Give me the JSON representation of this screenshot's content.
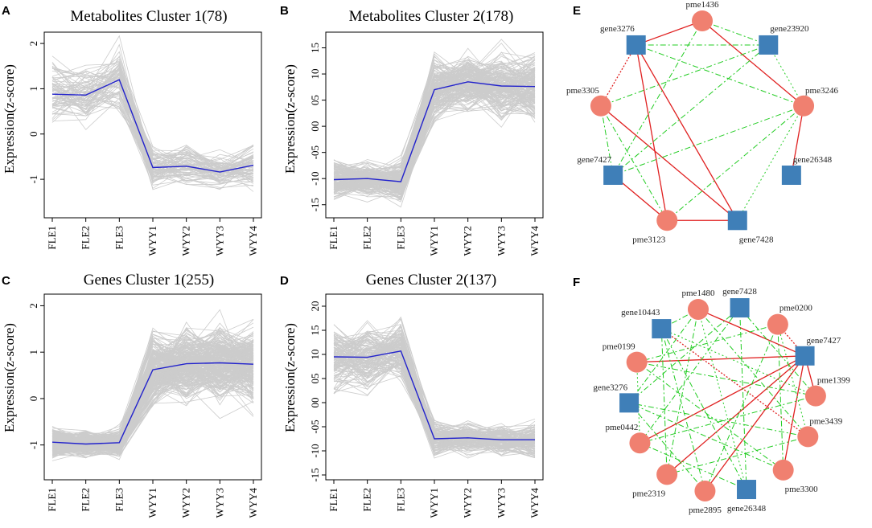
{
  "colors": {
    "gray_line": "#cccccc",
    "mean_line": "#2222cc",
    "metabolite_node": "#f08070",
    "gene_node": "#3f7fb8",
    "pos_edge": "#e02020",
    "neg_edge": "#22cc22"
  },
  "chart_data": [
    {
      "letter": "A",
      "type": "line",
      "title": "Metabolites Cluster 1(78)",
      "ylabel": "Expression(z-score)",
      "categories": [
        "FLE1",
        "FLE2",
        "FLE3",
        "WYY1",
        "WYY2",
        "WYY3",
        "WYY4"
      ],
      "ylim": [
        -1.85,
        2.25
      ],
      "yticks": [
        -1,
        0,
        1,
        2
      ],
      "ytick_labels": [
        "-1",
        "0",
        "1",
        "2"
      ],
      "mean": [
        0.88,
        0.86,
        1.2,
        -0.74,
        -0.71,
        -0.84,
        -0.69
      ],
      "profile": {
        "center": [
          0.88,
          0.86,
          1.2,
          -0.74,
          -0.71,
          -0.84,
          -0.69
        ],
        "spread": [
          0.42,
          0.38,
          0.45,
          0.3,
          0.25,
          0.22,
          0.3
        ],
        "count": 78
      }
    },
    {
      "letter": "B",
      "type": "line",
      "title": "Metabolites Cluster 2(178)",
      "ylabel": "Expression(z-score)",
      "categories": [
        "FLE1",
        "FLE2",
        "FLE3",
        "WYY1",
        "WYY2",
        "WYY3",
        "WYY4"
      ],
      "ylim": [
        -1.75,
        1.8
      ],
      "yticks": [
        -1.5,
        -1.0,
        -0.5,
        0.0,
        0.5,
        1.0,
        1.5
      ],
      "ytick_labels": [
        "-15",
        "-10",
        "-05",
        "00",
        "05",
        "10",
        "15"
      ],
      "mean": [
        -1.02,
        -1.0,
        -1.06,
        0.7,
        0.85,
        0.77,
        0.76
      ],
      "profile": {
        "center": [
          -1.02,
          -1.0,
          -1.06,
          0.7,
          0.85,
          0.77,
          0.76
        ],
        "spread": [
          0.22,
          0.2,
          0.22,
          0.38,
          0.35,
          0.35,
          0.38
        ],
        "count": 178
      }
    },
    {
      "letter": "C",
      "type": "line",
      "title": "Genes Cluster 1(255)",
      "ylabel": "Expression(z-score)",
      "categories": [
        "FLE1",
        "FLE2",
        "FLE3",
        "WYY1",
        "WYY2",
        "WYY3",
        "WYY4"
      ],
      "ylim": [
        -1.75,
        2.25
      ],
      "yticks": [
        -1,
        0,
        1,
        2
      ],
      "ytick_labels": [
        "-1",
        "0",
        "1",
        "2"
      ],
      "mean": [
        -0.94,
        -0.98,
        -0.95,
        0.62,
        0.75,
        0.77,
        0.74
      ],
      "profile": {
        "center": [
          -0.94,
          -0.98,
          -0.95,
          0.62,
          0.75,
          0.77,
          0.74
        ],
        "spread": [
          0.18,
          0.16,
          0.18,
          0.48,
          0.5,
          0.5,
          0.5
        ],
        "count": 255
      }
    },
    {
      "letter": "D",
      "type": "line",
      "title": "Genes Cluster 2(137)",
      "ylabel": "Expression(z-score)",
      "categories": [
        "FLE1",
        "FLE2",
        "FLE3",
        "WYY1",
        "WYY2",
        "WYY3",
        "WYY4"
      ],
      "ylim": [
        -1.6,
        2.25
      ],
      "yticks": [
        -1.5,
        -1.0,
        -0.5,
        0.0,
        0.5,
        1.0,
        1.5,
        2.0
      ],
      "ytick_labels": [
        "-15",
        "-10",
        "-05",
        "00",
        "05",
        "10",
        "15",
        "20"
      ],
      "mean": [
        0.95,
        0.94,
        1.07,
        -0.75,
        -0.73,
        -0.77,
        -0.77
      ],
      "profile": {
        "center": [
          0.95,
          0.94,
          1.07,
          -0.75,
          -0.73,
          -0.77,
          -0.77
        ],
        "spread": [
          0.42,
          0.4,
          0.38,
          0.22,
          0.2,
          0.2,
          0.22
        ],
        "count": 137
      }
    }
  ],
  "networks": [
    {
      "letter": "E",
      "nodes": [
        {
          "id": "pme1436",
          "kind": "metabolite"
        },
        {
          "id": "gene23920",
          "kind": "gene"
        },
        {
          "id": "pme3246",
          "kind": "metabolite"
        },
        {
          "id": "gene26348",
          "kind": "gene"
        },
        {
          "id": "gene7428",
          "kind": "gene"
        },
        {
          "id": "pme3123",
          "kind": "metabolite"
        },
        {
          "id": "gene7427",
          "kind": "gene"
        },
        {
          "id": "pme3305",
          "kind": "metabolite"
        },
        {
          "id": "gene3276",
          "kind": "gene"
        }
      ],
      "edges": [
        [
          "gene3276",
          "pme1436",
          "pos"
        ],
        [
          "gene3276",
          "gene7428",
          "pos"
        ],
        [
          "gene3276",
          "pme3123",
          "pos"
        ],
        [
          "pme1436",
          "pme3246",
          "pos"
        ],
        [
          "pme3305",
          "gene7428",
          "pos"
        ],
        [
          "pme3246",
          "gene26348",
          "pos"
        ],
        [
          "gene7427",
          "pme3123",
          "pos"
        ],
        [
          "pme3123",
          "gene7428",
          "pos"
        ],
        [
          "pme3305",
          "gene3276",
          "pos-dot"
        ],
        [
          "pme1436",
          "gene23920",
          "neg"
        ],
        [
          "pme1436",
          "gene7427",
          "neg"
        ],
        [
          "gene3276",
          "gene23920",
          "neg"
        ],
        [
          "gene23920",
          "pme3305",
          "neg"
        ],
        [
          "gene23920",
          "gene7427",
          "neg"
        ],
        [
          "pme3246",
          "gene7427",
          "neg"
        ],
        [
          "pme3246",
          "pme3123",
          "neg"
        ],
        [
          "gene3276",
          "pme3246",
          "neg"
        ],
        [
          "pme3305",
          "gene7427",
          "neg"
        ],
        [
          "pme3305",
          "pme3123",
          "neg"
        ],
        [
          "gene23920",
          "pme3246",
          "neg-dot"
        ],
        [
          "pme3246",
          "gene7428",
          "neg-dot"
        ]
      ]
    },
    {
      "letter": "F",
      "nodes": [
        {
          "id": "pme1480",
          "kind": "metabolite"
        },
        {
          "id": "gene7428",
          "kind": "gene"
        },
        {
          "id": "pme0200",
          "kind": "metabolite"
        },
        {
          "id": "gene7427",
          "kind": "gene"
        },
        {
          "id": "pme1399",
          "kind": "metabolite"
        },
        {
          "id": "pme3439",
          "kind": "metabolite"
        },
        {
          "id": "pme3300",
          "kind": "metabolite"
        },
        {
          "id": "gene26348",
          "kind": "gene"
        },
        {
          "id": "pme2895",
          "kind": "metabolite"
        },
        {
          "id": "pme2319",
          "kind": "metabolite"
        },
        {
          "id": "pme0442",
          "kind": "metabolite"
        },
        {
          "id": "gene3276",
          "kind": "gene"
        },
        {
          "id": "pme0199",
          "kind": "metabolite"
        },
        {
          "id": "gene10443",
          "kind": "gene"
        }
      ],
      "edges": [
        [
          "gene7427",
          "pme1480",
          "pos"
        ],
        [
          "gene7427",
          "pme0199",
          "pos"
        ],
        [
          "gene7427",
          "pme0442",
          "pos"
        ],
        [
          "gene7427",
          "pme2319",
          "pos"
        ],
        [
          "gene7427",
          "pme2895",
          "pos"
        ],
        [
          "gene7427",
          "pme3300",
          "pos"
        ],
        [
          "gene7427",
          "pme1399",
          "pos"
        ],
        [
          "gene7427",
          "pme0200",
          "pos-dot"
        ],
        [
          "gene10443",
          "pme3439",
          "pos-dot"
        ],
        [
          "pme1480",
          "gene10443",
          "neg"
        ],
        [
          "pme1480",
          "pme3439",
          "neg"
        ],
        [
          "pme1480",
          "pme2319",
          "neg"
        ],
        [
          "pme1480",
          "gene3276",
          "neg"
        ],
        [
          "gene7428",
          "pme0442",
          "neg"
        ],
        [
          "gene7428",
          "gene26348",
          "neg"
        ],
        [
          "gene7428",
          "pme1399",
          "neg"
        ],
        [
          "gene7428",
          "gene3276",
          "neg"
        ],
        [
          "pme0200",
          "pme0199",
          "neg"
        ],
        [
          "pme0200",
          "pme2895",
          "neg"
        ],
        [
          "pme0200",
          "pme3300",
          "neg"
        ],
        [
          "gene10443",
          "pme2895",
          "neg"
        ],
        [
          "gene10443",
          "gene26348",
          "neg"
        ],
        [
          "pme0199",
          "pme3300",
          "neg"
        ],
        [
          "pme0199",
          "pme1399",
          "neg"
        ],
        [
          "pme1399",
          "pme0442",
          "neg"
        ],
        [
          "pme3439",
          "gene3276",
          "neg"
        ],
        [
          "pme3439",
          "pme2319",
          "neg"
        ],
        [
          "pme3300",
          "gene3276",
          "neg"
        ],
        [
          "gene26348",
          "pme0442",
          "neg"
        ],
        [
          "pme2895",
          "gene3276",
          "neg"
        ],
        [
          "pme2319",
          "gene10443",
          "neg"
        ],
        [
          "pme0442",
          "pme0199",
          "neg-dot"
        ],
        [
          "gene26348",
          "pme1480",
          "neg-dot"
        ],
        [
          "pme1399",
          "gene10443",
          "neg-dot"
        ],
        [
          "pme3439",
          "pme0200",
          "neg-dot"
        ]
      ]
    }
  ]
}
